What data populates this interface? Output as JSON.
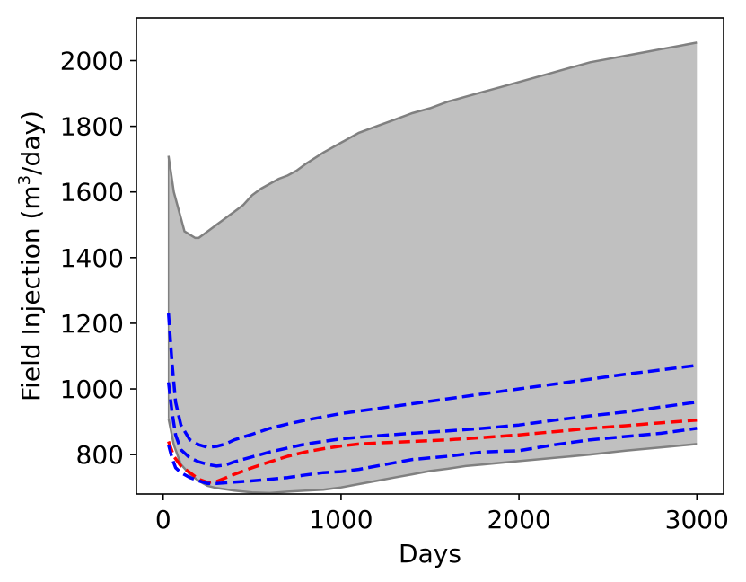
{
  "chart_data": {
    "type": "line",
    "xlabel": "Days",
    "ylabel": "Field Injection (m",
    "ylabel_sup": "3",
    "ylabel_tail": "/day)",
    "xlim": [
      -150,
      3150
    ],
    "ylim": [
      680,
      2130
    ],
    "xticks": [
      0,
      1000,
      2000,
      3000
    ],
    "yticks": [
      800,
      1000,
      1200,
      1400,
      1600,
      1800,
      2000
    ],
    "band": {
      "color": "#c0c0c0",
      "edge_color": "#808080",
      "upper": {
        "x": [
          30,
          60,
          120,
          180,
          200,
          250,
          300,
          350,
          400,
          450,
          500,
          550,
          600,
          650,
          700,
          750,
          800,
          900,
          1000,
          1100,
          1200,
          1300,
          1400,
          1500,
          1600,
          1700,
          1800,
          1900,
          2000,
          2100,
          2200,
          2300,
          2400,
          2500,
          2600,
          2700,
          2800,
          2900,
          3000
        ],
        "y": [
          1710,
          1600,
          1480,
          1460,
          1460,
          1480,
          1500,
          1520,
          1540,
          1560,
          1590,
          1610,
          1625,
          1640,
          1650,
          1665,
          1685,
          1720,
          1750,
          1780,
          1800,
          1820,
          1840,
          1855,
          1875,
          1890,
          1905,
          1920,
          1935,
          1950,
          1965,
          1980,
          1995,
          2005,
          2015,
          2025,
          2035,
          2045,
          2055
        ]
      },
      "lower": {
        "x": [
          30,
          60,
          100,
          150,
          200,
          250,
          300,
          400,
          500,
          600,
          700,
          800,
          900,
          1000,
          1100,
          1200,
          1300,
          1400,
          1500,
          1600,
          1700,
          1800,
          1900,
          2000,
          2200,
          2400,
          2600,
          2800,
          3000
        ],
        "y": [
          910,
          830,
          770,
          740,
          720,
          705,
          698,
          690,
          685,
          683,
          687,
          690,
          693,
          700,
          710,
          720,
          730,
          740,
          750,
          757,
          765,
          770,
          775,
          780,
          790,
          800,
          812,
          822,
          832
        ]
      }
    },
    "series": [
      {
        "color": "#ff0000",
        "style": "dashed",
        "x": [
          30,
          60,
          100,
          150,
          200,
          250,
          300,
          400,
          500,
          600,
          700,
          800,
          900,
          1000,
          1100,
          1200,
          1400,
          1600,
          1800,
          2000,
          2200,
          2400,
          2600,
          2800,
          3000
        ],
        "y": [
          840,
          795,
          765,
          745,
          725,
          715,
          718,
          740,
          760,
          778,
          795,
          808,
          818,
          826,
          832,
          835,
          840,
          845,
          852,
          860,
          870,
          880,
          888,
          897,
          905
        ]
      },
      {
        "color": "#0000ff",
        "style": "dashed",
        "x": [
          30,
          50,
          70,
          100,
          150,
          200,
          250,
          300,
          350,
          400,
          500,
          600,
          700,
          800,
          900,
          1000,
          1200,
          1400,
          1600,
          1800,
          2000,
          2200,
          2400,
          2600,
          2800,
          3000
        ],
        "y": [
          1230,
          1080,
          960,
          890,
          845,
          830,
          822,
          825,
          832,
          845,
          862,
          880,
          893,
          905,
          915,
          925,
          940,
          955,
          970,
          985,
          1000,
          1015,
          1030,
          1045,
          1058,
          1072
        ]
      },
      {
        "color": "#0000ff",
        "style": "dashed",
        "x": [
          30,
          50,
          70,
          100,
          150,
          200,
          250,
          300,
          350,
          400,
          500,
          600,
          700,
          800,
          900,
          1000,
          1100,
          1200,
          1400,
          1600,
          1800,
          2000,
          2200,
          2400,
          2600,
          2800,
          3000
        ],
        "y": [
          1020,
          930,
          860,
          815,
          790,
          778,
          770,
          765,
          768,
          778,
          793,
          808,
          820,
          832,
          840,
          848,
          853,
          857,
          865,
          872,
          880,
          890,
          905,
          918,
          930,
          945,
          960
        ]
      },
      {
        "color": "#0000ff",
        "style": "dashed",
        "x": [
          30,
          50,
          70,
          100,
          150,
          200,
          250,
          300,
          400,
          500,
          600,
          700,
          800,
          900,
          1000,
          1100,
          1200,
          1400,
          1600,
          1800,
          2000,
          2200,
          2400,
          2600,
          2800,
          3000
        ],
        "y": [
          830,
          790,
          760,
          745,
          730,
          720,
          712,
          712,
          716,
          720,
          725,
          730,
          738,
          745,
          748,
          755,
          765,
          785,
          795,
          808,
          812,
          830,
          845,
          855,
          865,
          880
        ]
      }
    ]
  }
}
